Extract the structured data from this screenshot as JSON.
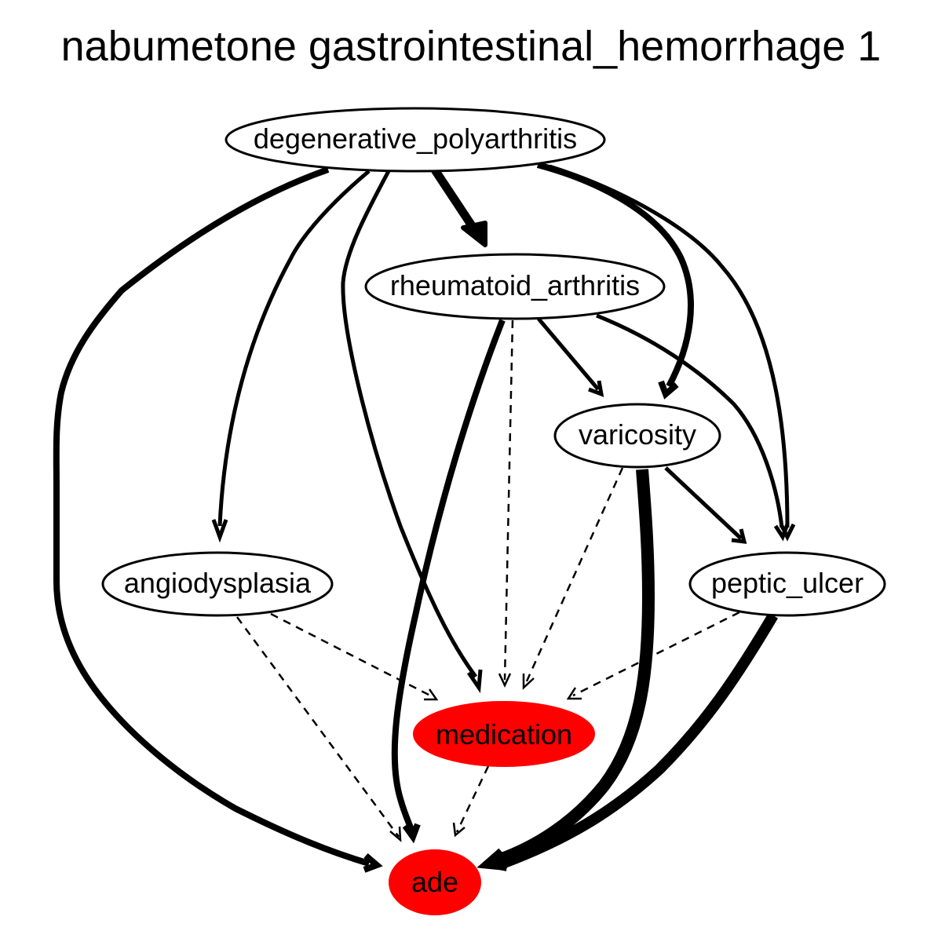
{
  "title": "nabumetone gastrointestinal_hemorrhage 1",
  "colors": {
    "highlight_fill": "#ff0000",
    "node_fill": "#ffffff",
    "stroke": "#000000"
  },
  "nodes": {
    "degenerative_polyarthritis": {
      "label": "degenerative_polyarthritis",
      "highlight": false
    },
    "rheumatoid_arthritis": {
      "label": "rheumatoid_arthritis",
      "highlight": false
    },
    "varicosity": {
      "label": "varicosity",
      "highlight": false
    },
    "angiodysplasia": {
      "label": "angiodysplasia",
      "highlight": false
    },
    "peptic_ulcer": {
      "label": "peptic_ulcer",
      "highlight": false
    },
    "medication": {
      "label": "medication",
      "highlight": true
    },
    "ade": {
      "label": "ade",
      "highlight": true
    }
  },
  "edges": [
    {
      "from": "degenerative_polyarthritis",
      "to": "rheumatoid_arthritis",
      "style": "solid",
      "weight": "heavy"
    },
    {
      "from": "degenerative_polyarthritis",
      "to": "angiodysplasia",
      "style": "solid",
      "weight": "normal"
    },
    {
      "from": "degenerative_polyarthritis",
      "to": "medication",
      "style": "solid",
      "weight": "normal"
    },
    {
      "from": "degenerative_polyarthritis",
      "to": "varicosity",
      "style": "solid",
      "weight": "heavy"
    },
    {
      "from": "degenerative_polyarthritis",
      "to": "peptic_ulcer",
      "style": "solid",
      "weight": "normal"
    },
    {
      "from": "degenerative_polyarthritis",
      "to": "ade",
      "style": "solid",
      "weight": "heavy"
    },
    {
      "from": "rheumatoid_arthritis",
      "to": "varicosity",
      "style": "solid",
      "weight": "normal"
    },
    {
      "from": "rheumatoid_arthritis",
      "to": "peptic_ulcer",
      "style": "solid",
      "weight": "normal"
    },
    {
      "from": "rheumatoid_arthritis",
      "to": "medication",
      "style": "dashed",
      "weight": "thin"
    },
    {
      "from": "rheumatoid_arthritis",
      "to": "ade",
      "style": "solid",
      "weight": "heavy"
    },
    {
      "from": "varicosity",
      "to": "peptic_ulcer",
      "style": "solid",
      "weight": "normal"
    },
    {
      "from": "varicosity",
      "to": "medication",
      "style": "dashed",
      "weight": "thin"
    },
    {
      "from": "varicosity",
      "to": "ade",
      "style": "solid",
      "weight": "very-heavy"
    },
    {
      "from": "angiodysplasia",
      "to": "medication",
      "style": "dashed",
      "weight": "thin"
    },
    {
      "from": "angiodysplasia",
      "to": "ade",
      "style": "dashed",
      "weight": "thin"
    },
    {
      "from": "peptic_ulcer",
      "to": "medication",
      "style": "dashed",
      "weight": "thin"
    },
    {
      "from": "peptic_ulcer",
      "to": "ade",
      "style": "solid",
      "weight": "very-heavy"
    },
    {
      "from": "medication",
      "to": "ade",
      "style": "dashed",
      "weight": "thin"
    }
  ]
}
